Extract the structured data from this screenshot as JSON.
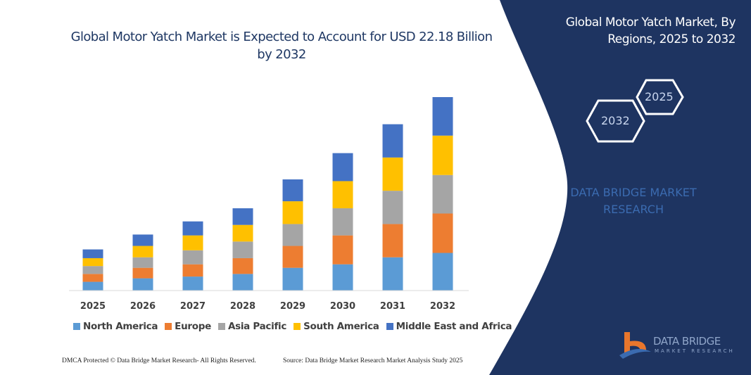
{
  "header": {
    "title": "Global Motor Yatch Market is Expected to Account for USD 22.18 Billion by 2032",
    "side_title": "Global Motor Yatch Market, By Regions, 2025 to 2032"
  },
  "hexagons": {
    "start": "2025",
    "end": "2032"
  },
  "watermark": "DATA BRIDGE MARKET RESEARCH",
  "logo": {
    "name": "DATA BRIDGE",
    "sub": "MARKET RESEARCH"
  },
  "footer": {
    "left": "DMCA Protected © Data Bridge Market Research-  All Rights Reserved.",
    "right": "Source: Data Bridge Market Research  Market Analysis Study 2025"
  },
  "colors": {
    "panel": "#1e3461",
    "title": "#1f3864"
  },
  "chart_data": {
    "type": "bar",
    "stacked": true,
    "title": "Global Motor Yatch Market is Expected to Account for USD 22.18 Billion by 2032",
    "xlabel": "",
    "ylabel": "",
    "y_axis_shown": false,
    "grid": false,
    "legend_position": "bottom",
    "categories": [
      "2025",
      "2026",
      "2027",
      "2028",
      "2029",
      "2030",
      "2031",
      "2032"
    ],
    "ylim": [
      0,
      22.18
    ],
    "series": [
      {
        "name": "North America",
        "color": "#5b9bd5",
        "values": [
          1.0,
          1.4,
          1.6,
          1.9,
          2.6,
          3.0,
          3.8,
          4.3
        ]
      },
      {
        "name": "Europe",
        "color": "#ed7d31",
        "values": [
          0.9,
          1.2,
          1.4,
          1.8,
          2.5,
          3.3,
          3.8,
          4.5
        ]
      },
      {
        "name": "Asia Pacific",
        "color": "#a5a5a5",
        "values": [
          0.9,
          1.2,
          1.6,
          1.9,
          2.5,
          3.1,
          3.8,
          4.4
        ]
      },
      {
        "name": "South America",
        "color": "#ffc000",
        "values": [
          0.9,
          1.3,
          1.7,
          1.9,
          2.6,
          3.1,
          3.8,
          4.5
        ]
      },
      {
        "name": "Middle East and Africa",
        "color": "#4472c4",
        "values": [
          1.0,
          1.3,
          1.6,
          1.9,
          2.5,
          3.2,
          3.8,
          4.4
        ]
      }
    ]
  }
}
